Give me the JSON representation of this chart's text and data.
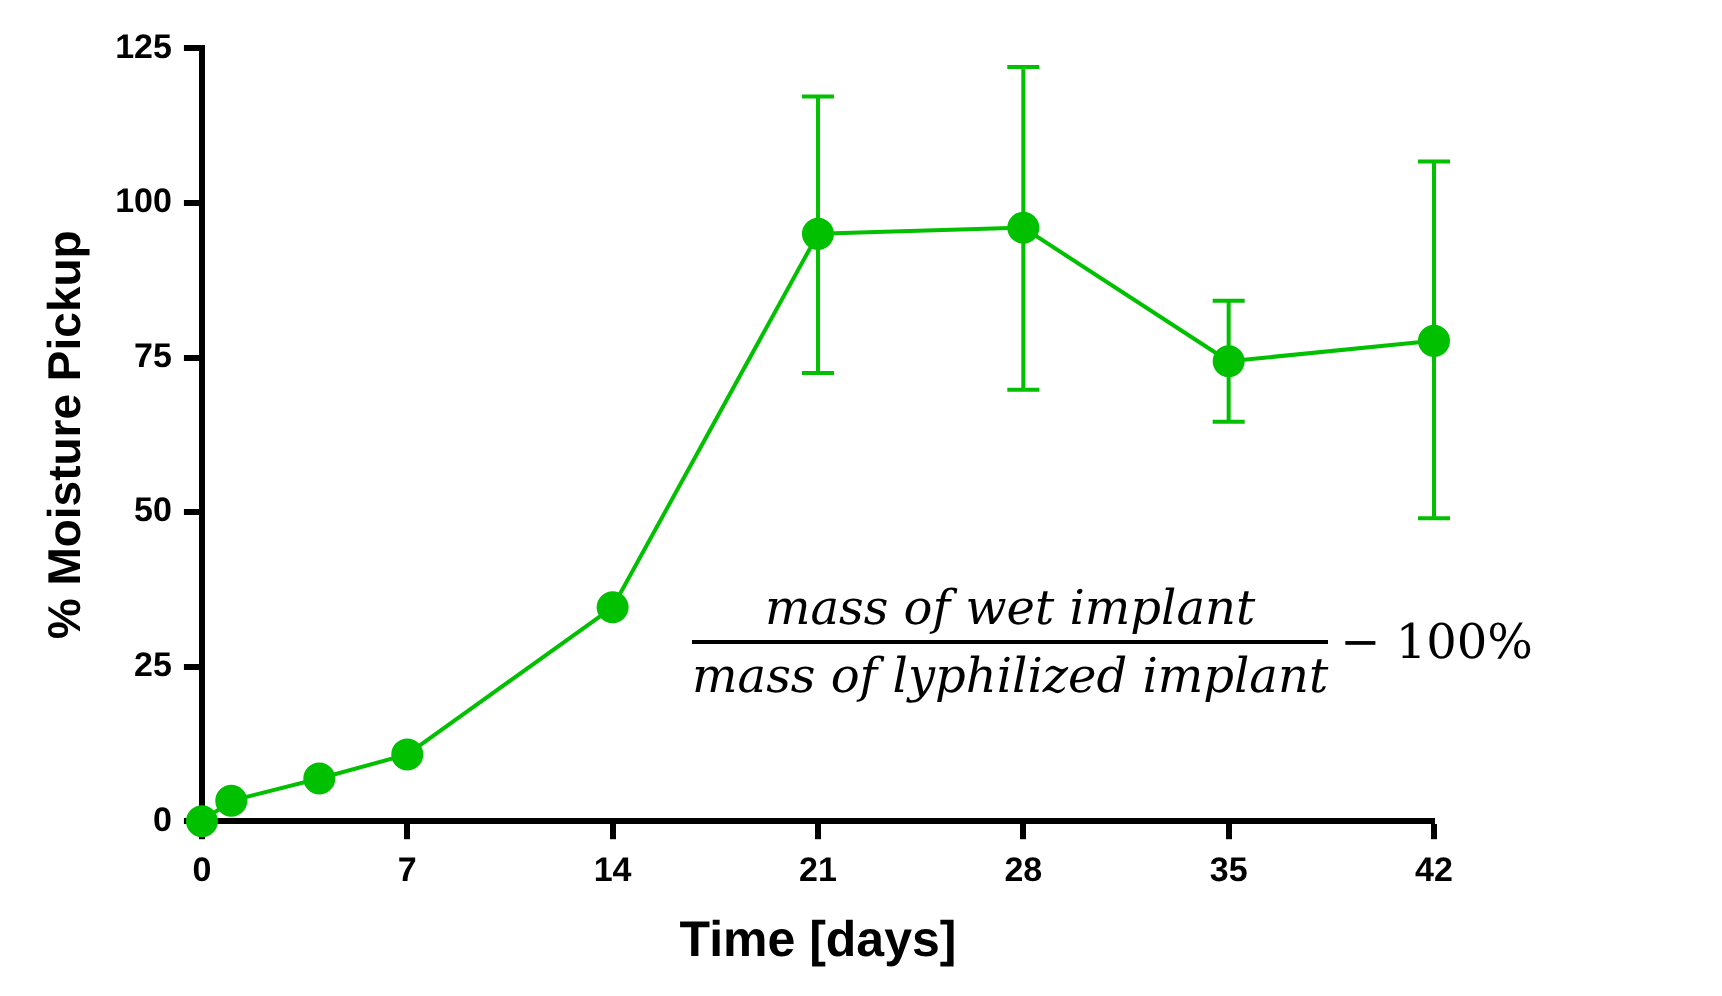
{
  "chart_data": {
    "type": "line",
    "xlabel": "Time [days]",
    "ylabel": "% Moisture Pickup",
    "x": [
      0,
      1,
      4,
      7,
      14,
      21,
      28,
      35,
      42
    ],
    "series": [
      {
        "color": "#00c000",
        "values": [
          0,
          3.3,
          6.9,
          10.8,
          34.6,
          95,
          96,
          74.4,
          77.7
        ],
        "errors": [
          null,
          null,
          null,
          null,
          null,
          [
            72.5,
            117.2
          ],
          [
            69.8,
            122
          ],
          [
            64.6,
            84.2
          ],
          [
            49,
            106.7
          ]
        ]
      }
    ],
    "xlim": [
      0,
      42
    ],
    "xticks": [
      0,
      7,
      14,
      21,
      28,
      35,
      42
    ],
    "ylim": [
      0,
      125
    ],
    "yticks": [
      0,
      25,
      50,
      75,
      100,
      125
    ],
    "grid": false,
    "legend": false,
    "marker": "circle",
    "line_style": "solid",
    "annotations": [
      "mass of wet implant",
      "mass of lyphilized implant",
      "− 100%"
    ]
  }
}
